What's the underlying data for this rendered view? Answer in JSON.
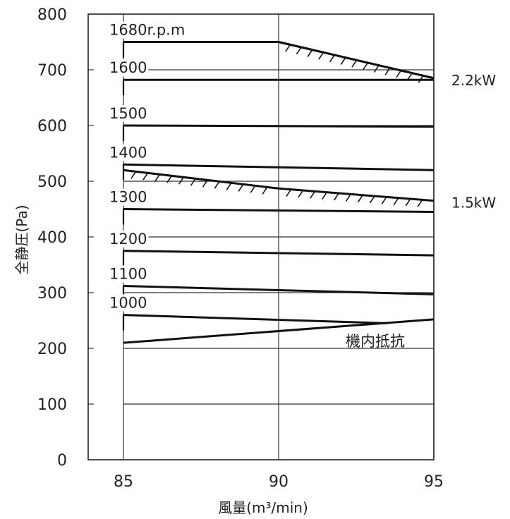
{
  "chart_data": {
    "type": "line",
    "xlabel": "風量(m³/min)",
    "ylabel": "全静圧(Pa)",
    "xlim": [
      85,
      95
    ],
    "ylim": [
      0,
      800
    ],
    "xticks": [
      85,
      90,
      95
    ],
    "yticks": [
      0,
      100,
      200,
      300,
      400,
      500,
      600,
      700,
      800
    ],
    "grid": true,
    "series": [
      {
        "name": "1680r.p.m",
        "x": [
          85,
          90,
          95
        ],
        "y": [
          750,
          750,
          685
        ]
      },
      {
        "name": "1600",
        "x": [
          85,
          95
        ],
        "y": [
          682,
          682
        ]
      },
      {
        "name": "1500",
        "x": [
          85,
          95
        ],
        "y": [
          600,
          598
        ]
      },
      {
        "name": "1400",
        "x": [
          85,
          95
        ],
        "y": [
          530,
          520
        ]
      },
      {
        "name": "1300",
        "x": [
          85,
          95
        ],
        "y": [
          450,
          445
        ]
      },
      {
        "name": "1200",
        "x": [
          85,
          95
        ],
        "y": [
          375,
          367
        ]
      },
      {
        "name": "1100",
        "x": [
          85,
          95
        ],
        "y": [
          312,
          297
        ]
      },
      {
        "name": "1000",
        "x": [
          85,
          93.5
        ],
        "y": [
          260,
          245
        ]
      },
      {
        "name": "機内抵抗",
        "x": [
          85,
          95
        ],
        "y": [
          210,
          252
        ]
      }
    ],
    "power_limits": [
      {
        "name": "2.2kW",
        "x": [
          90,
          95
        ],
        "y": [
          750,
          685
        ]
      },
      {
        "name": "1.5kW",
        "x": [
          85,
          90,
          95
        ],
        "y": [
          520,
          487,
          465
        ]
      }
    ]
  }
}
